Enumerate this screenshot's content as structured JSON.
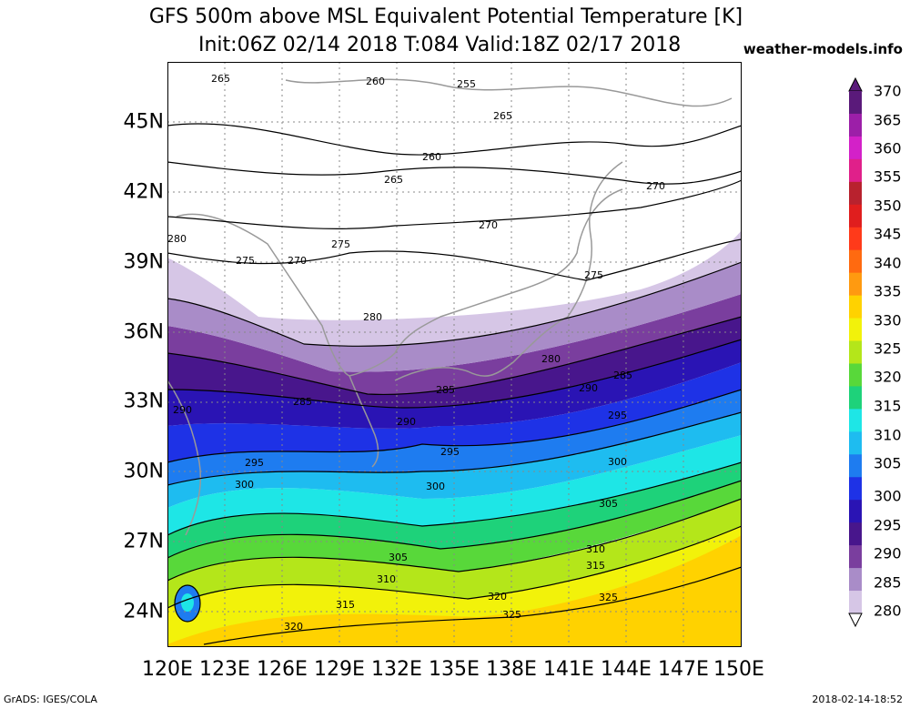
{
  "title_line1": "GFS 500m above MSL Equivalent Potential Temperature [K]",
  "title_line2": "Init:06Z 02/14 2018 T:084 Valid:18Z 02/17 2018",
  "site": "weather-models.info",
  "footer_left": "GrADS: IGES/COLA",
  "footer_right": "2018-02-14-18:52",
  "lat_labels": [
    "45N",
    "42N",
    "39N",
    "36N",
    "33N",
    "30N",
    "27N",
    "24N"
  ],
  "lon_labels": [
    "120E",
    "123E",
    "126E",
    "129E",
    "132E",
    "135E",
    "138E",
    "141E",
    "144E",
    "147E",
    "150E"
  ],
  "colorbar": {
    "labels": [
      "370",
      "365",
      "360",
      "355",
      "350",
      "345",
      "340",
      "335",
      "330",
      "325",
      "320",
      "315",
      "310",
      "305",
      "300",
      "295",
      "290",
      "285",
      "280"
    ],
    "colors": [
      "#5a1a7a",
      "#9c1fa8",
      "#d321c8",
      "#e0208a",
      "#b8222e",
      "#e01e1e",
      "#ff3a1a",
      "#ff6a10",
      "#ff9a10",
      "#ffd200",
      "#f2f20a",
      "#b4e61a",
      "#58d83a",
      "#1ed27a",
      "#1ee6e6",
      "#1ebcf0",
      "#1e7cf0",
      "#1e32e6",
      "#2a14b4",
      "#48168c",
      "#7a3e9e",
      "#a98cc8",
      "#d6c6e6"
    ]
  },
  "contour_labels": [
    "265",
    "260",
    "255",
    "265",
    "260",
    "265",
    "270",
    "270",
    "275",
    "270",
    "275",
    "275",
    "280",
    "280",
    "280",
    "285",
    "285",
    "285",
    "290",
    "290",
    "290",
    "295",
    "295",
    "295",
    "300",
    "300",
    "300",
    "305",
    "305",
    "310",
    "310",
    "315",
    "315",
    "320",
    "320",
    "325",
    "325"
  ]
}
